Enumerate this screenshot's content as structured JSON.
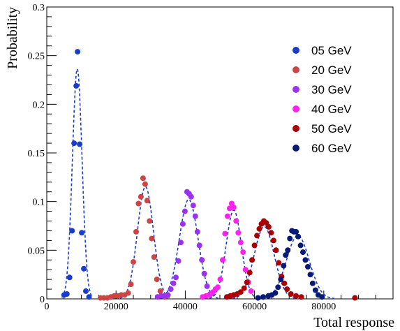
{
  "chart_data": {
    "type": "scatter",
    "xlabel": "Total response",
    "ylabel": "Probability",
    "xlim": [
      0,
      100000
    ],
    "ylim": [
      0,
      0.3
    ],
    "x_ticks": [
      {
        "v": 0,
        "label": "0"
      },
      {
        "v": 20000,
        "label": "20000"
      },
      {
        "v": 40000,
        "label": "40000"
      },
      {
        "v": 60000,
        "label": "60000"
      },
      {
        "v": 80000,
        "label": "80000"
      }
    ],
    "y_ticks": [
      {
        "v": 0,
        "label": "0"
      },
      {
        "v": 0.05,
        "label": "0.05"
      },
      {
        "v": 0.1,
        "label": "0.1"
      },
      {
        "v": 0.15,
        "label": "0.15"
      },
      {
        "v": 0.2,
        "label": "0.2"
      },
      {
        "v": 0.25,
        "label": "0.25"
      },
      {
        "v": 0.3,
        "label": "0.3"
      }
    ],
    "grid": false,
    "legend_position": "top-right",
    "series": [
      {
        "name": "05 GeV",
        "color": "#1a3ccc",
        "fit_color": "#1a3ccc",
        "mean": 8800,
        "sigma": 1400,
        "points": [
          [
            5000,
            0.004
          ],
          [
            5800,
            0.005
          ],
          [
            6600,
            0.022
          ],
          [
            7300,
            0.07
          ],
          [
            7900,
            0.16
          ],
          [
            8500,
            0.219
          ],
          [
            8900,
            0.254
          ],
          [
            9500,
            0.159
          ],
          [
            10100,
            0.068
          ],
          [
            10700,
            0.031
          ],
          [
            11300,
            0.008
          ],
          [
            12200,
            0.002
          ]
        ]
      },
      {
        "name": "20 GeV",
        "color": "#cc4444",
        "fit_color": "#1a3ccc",
        "mean": 28500,
        "sigma": 2300,
        "points": [
          [
            15500,
            0.001
          ],
          [
            16500,
            0.001
          ],
          [
            17500,
            0.001
          ],
          [
            18500,
            0.002
          ],
          [
            19500,
            0.003
          ],
          [
            20500,
            0.003
          ],
          [
            21500,
            0.004
          ],
          [
            22500,
            0.004
          ],
          [
            23500,
            0.006
          ],
          [
            24300,
            0.015
          ],
          [
            25000,
            0.038
          ],
          [
            25800,
            0.069
          ],
          [
            26500,
            0.098
          ],
          [
            27200,
            0.105
          ],
          [
            27800,
            0.124
          ],
          [
            28400,
            0.118
          ],
          [
            29000,
            0.101
          ],
          [
            29700,
            0.08
          ],
          [
            30300,
            0.062
          ],
          [
            31000,
            0.043
          ],
          [
            31800,
            0.02
          ],
          [
            32800,
            0.008
          ],
          [
            34000,
            0.002
          ]
        ]
      },
      {
        "name": "30 GeV",
        "color": "#9933ee",
        "fit_color": "#1a3ccc",
        "mean": 41000,
        "sigma": 2700,
        "points": [
          [
            32000,
            0.002
          ],
          [
            33000,
            0.003
          ],
          [
            34000,
            0.003
          ],
          [
            35000,
            0.004
          ],
          [
            35800,
            0.01
          ],
          [
            36600,
            0.016
          ],
          [
            37300,
            0.022
          ],
          [
            38000,
            0.039
          ],
          [
            38700,
            0.058
          ],
          [
            39300,
            0.077
          ],
          [
            39900,
            0.09
          ],
          [
            40500,
            0.11
          ],
          [
            41100,
            0.108
          ],
          [
            41700,
            0.105
          ],
          [
            42300,
            0.096
          ],
          [
            42900,
            0.085
          ],
          [
            43500,
            0.069
          ],
          [
            44100,
            0.055
          ],
          [
            44800,
            0.04
          ],
          [
            45500,
            0.026
          ],
          [
            46300,
            0.013
          ],
          [
            47200,
            0.005
          ]
        ]
      },
      {
        "name": "40 GeV",
        "color": "#ff22ee",
        "fit_color": "#1a3ccc",
        "mean": 54000,
        "sigma": 2200,
        "points": [
          [
            45000,
            0.002
          ],
          [
            46000,
            0.003
          ],
          [
            47000,
            0.004
          ],
          [
            48000,
            0.007
          ],
          [
            48700,
            0.01
          ],
          [
            49400,
            0.012
          ],
          [
            50100,
            0.02
          ],
          [
            50800,
            0.04
          ],
          [
            51500,
            0.067
          ],
          [
            52200,
            0.085
          ],
          [
            52800,
            0.093
          ],
          [
            53400,
            0.098
          ],
          [
            54000,
            0.094
          ],
          [
            54700,
            0.08
          ],
          [
            55300,
            0.068
          ],
          [
            56000,
            0.058
          ],
          [
            56700,
            0.048
          ],
          [
            57400,
            0.03
          ],
          [
            58200,
            0.017
          ],
          [
            59000,
            0.008
          ]
        ]
      },
      {
        "name": "50 GeV",
        "color": "#aa0000",
        "fit_color": "#1a3ccc",
        "mean": 62800,
        "sigma": 2900,
        "points": [
          [
            52000,
            0.002
          ],
          [
            53000,
            0.003
          ],
          [
            54000,
            0.004
          ],
          [
            55000,
            0.005
          ],
          [
            56000,
            0.007
          ],
          [
            57000,
            0.011
          ],
          [
            57800,
            0.017
          ],
          [
            58600,
            0.027
          ],
          [
            59300,
            0.04
          ],
          [
            60000,
            0.055
          ],
          [
            60700,
            0.065
          ],
          [
            61400,
            0.072
          ],
          [
            62000,
            0.077
          ],
          [
            62700,
            0.08
          ],
          [
            63400,
            0.078
          ],
          [
            64100,
            0.074
          ],
          [
            64800,
            0.068
          ],
          [
            65500,
            0.06
          ],
          [
            66200,
            0.05
          ],
          [
            67000,
            0.037
          ],
          [
            67800,
            0.023
          ],
          [
            68600,
            0.016
          ],
          [
            69400,
            0.01
          ],
          [
            70500,
            0.005
          ],
          [
            72000,
            0.003
          ],
          [
            73500,
            0.002
          ],
          [
            89000,
            0.001
          ]
        ]
      },
      {
        "name": "60 GeV",
        "color": "#0a1a77",
        "fit_color": "#1a3ccc",
        "mean": 72500,
        "sigma": 3300,
        "points": [
          [
            61000,
            0.001
          ],
          [
            62500,
            0.002
          ],
          [
            64000,
            0.003
          ],
          [
            65000,
            0.004
          ],
          [
            66000,
            0.006
          ],
          [
            66800,
            0.012
          ],
          [
            67600,
            0.02
          ],
          [
            68400,
            0.034
          ],
          [
            69000,
            0.045
          ],
          [
            69600,
            0.05
          ],
          [
            70200,
            0.062
          ],
          [
            70800,
            0.07
          ],
          [
            71400,
            0.069
          ],
          [
            72000,
            0.069
          ],
          [
            72600,
            0.064
          ],
          [
            73300,
            0.055
          ],
          [
            74000,
            0.048
          ],
          [
            74700,
            0.04
          ],
          [
            75400,
            0.033
          ],
          [
            76100,
            0.025
          ],
          [
            76800,
            0.016
          ],
          [
            77600,
            0.009
          ],
          [
            78400,
            0.004
          ],
          [
            79500,
            0.002
          ]
        ]
      }
    ]
  }
}
